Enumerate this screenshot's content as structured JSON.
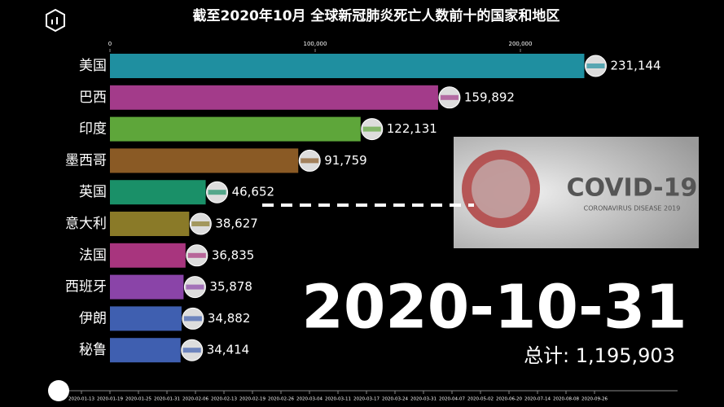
{
  "chart_data": {
    "type": "bar",
    "orientation": "horizontal",
    "title": "截至2020年10月 全球新冠肺炎死亡人数前十的国家和地区",
    "categories": [
      "美国",
      "巴西",
      "印度",
      "墨西哥",
      "英国",
      "意大利",
      "法国",
      "西班牙",
      "伊朗",
      "秘鲁"
    ],
    "values": [
      231144,
      159892,
      122131,
      91759,
      46652,
      38627,
      36835,
      35878,
      34882,
      34414
    ],
    "value_labels": [
      "231,144",
      "159,892",
      "122,131",
      "91,759",
      "46,652",
      "38,627",
      "36,835",
      "35,878",
      "34,882",
      "34,414"
    ],
    "colors": [
      "#1f8fa0",
      "#a33b8a",
      "#5ea63a",
      "#8a5a25",
      "#1a9068",
      "#8a7a28",
      "#a8357e",
      "#8a44a8",
      "#3f5fb0",
      "#3f5fb0"
    ],
    "xlim": [
      0,
      250000
    ],
    "xticks": [
      0,
      {
        "value": 100000,
        "label": "100,000"
      },
      {
        "value": 200000,
        "label": "200,000"
      }
    ],
    "date": "2020-10-31",
    "total": "总计: 1,195,903",
    "timeline": [
      "2020-01-13",
      "2020-01-19",
      "2020-01-25",
      "2020-01-31",
      "2020-02-06",
      "2020-02-13",
      "2020-02-19",
      "2020-02-26",
      "2020-03-04",
      "2020-03-11",
      "2020-03-17",
      "2020-03-24",
      "2020-03-31",
      "2020-04-07",
      "2020-05-02",
      "2020-06-20",
      "2020-07-14",
      "2020-08-08",
      "2020-09-26"
    ]
  },
  "overlay": {
    "title": "COVID-19",
    "subtitle": "CORONAVIRUS DISEASE 2019"
  }
}
